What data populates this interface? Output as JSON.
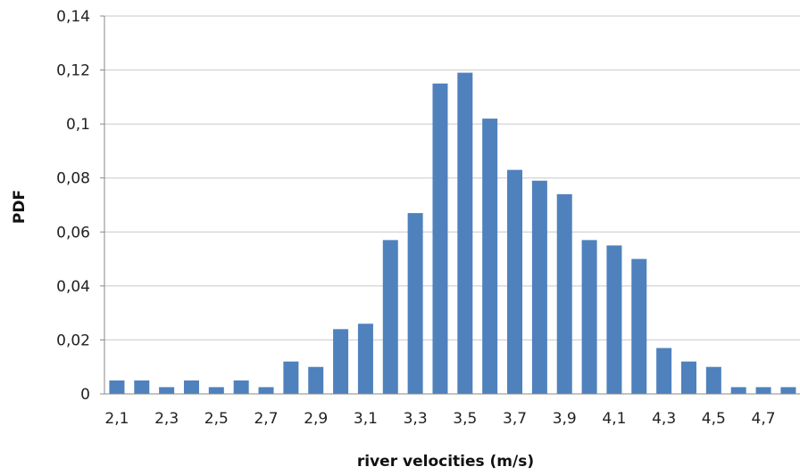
{
  "chart_data": {
    "type": "bar",
    "title": "",
    "xlabel": "river velocities (m/s)",
    "ylabel": "PDF",
    "ylim": [
      0,
      0.14
    ],
    "yticks": [
      "0",
      "0,02",
      "0,04",
      "0,06",
      "0,08",
      "0,1",
      "0,12",
      "0,14"
    ],
    "grid": true,
    "legend": "none",
    "color": "#4F81BD",
    "categories": [
      "2,1",
      "2,2",
      "2,3",
      "2,4",
      "2,5",
      "2,6",
      "2,7",
      "2,8",
      "2,9",
      "3",
      "3,1",
      "3,2",
      "3,3",
      "3,4",
      "3,5",
      "3,6",
      "3,7",
      "3,8",
      "3,9",
      "4",
      "4,1",
      "4,2",
      "4,3",
      "4,4",
      "4,5",
      "4,6",
      "4,7",
      "4,8"
    ],
    "xtick_labels": [
      "2,1",
      "",
      "2,3",
      "",
      "2,5",
      "",
      "2,7",
      "",
      "2,9",
      "",
      "3,1",
      "",
      "3,3",
      "",
      "3,5",
      "",
      "3,7",
      "",
      "3,9",
      "",
      "4,1",
      "",
      "4,3",
      "",
      "4,5",
      "",
      "4,7",
      ""
    ],
    "values": [
      0.005,
      0.005,
      0.0025,
      0.005,
      0.0025,
      0.005,
      0.0025,
      0.012,
      0.01,
      0.024,
      0.026,
      0.057,
      0.067,
      0.115,
      0.119,
      0.102,
      0.083,
      0.079,
      0.074,
      0.057,
      0.055,
      0.05,
      0.017,
      0.012,
      0.01,
      0.0025,
      0.0025,
      0.0025
    ]
  }
}
